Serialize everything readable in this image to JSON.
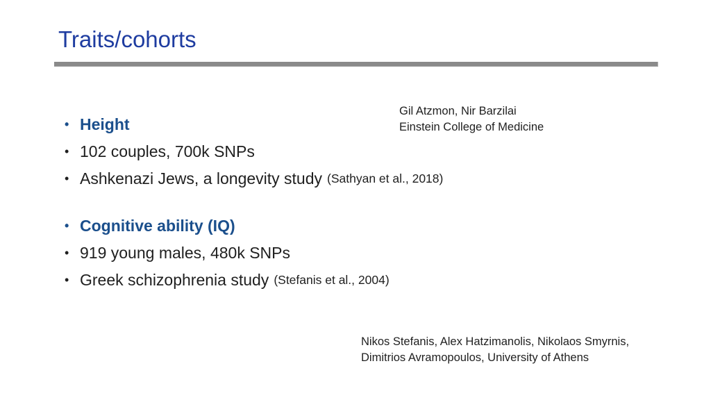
{
  "bullet_char": "•",
  "slide": {
    "title": "Traits/cohorts",
    "sections": [
      {
        "heading": "Height",
        "items": [
          {
            "text": "102 couples, 700k SNPs",
            "citation": ""
          },
          {
            "text": "Ashkenazi Jews, a longevity study",
            "citation": "(Sathyan et al., 2018)"
          }
        ]
      },
      {
        "heading": "Cognitive ability (IQ)",
        "items": [
          {
            "text": "919 young males, 480k SNPs",
            "citation": ""
          },
          {
            "text": "Greek schizophrenia study",
            "citation": "(Stefanis et al., 2004)"
          }
        ]
      }
    ],
    "credits_top": {
      "line1": "Gil Atzmon, Nir Barzilai",
      "line2": "Einstein College of Medicine"
    },
    "credits_bottom": {
      "line1": "Nikos Stefanis, Alex Hatzimanolis, Nikolaos Smyrnis,",
      "line2": "Dimitrios Avramopoulos, University of Athens"
    },
    "colors": {
      "title_blue": "#1E3CA0",
      "heading_blue": "#1B4F8C",
      "body_text": "#1F1F1F",
      "divider_gray": "#8A8A8A"
    }
  }
}
